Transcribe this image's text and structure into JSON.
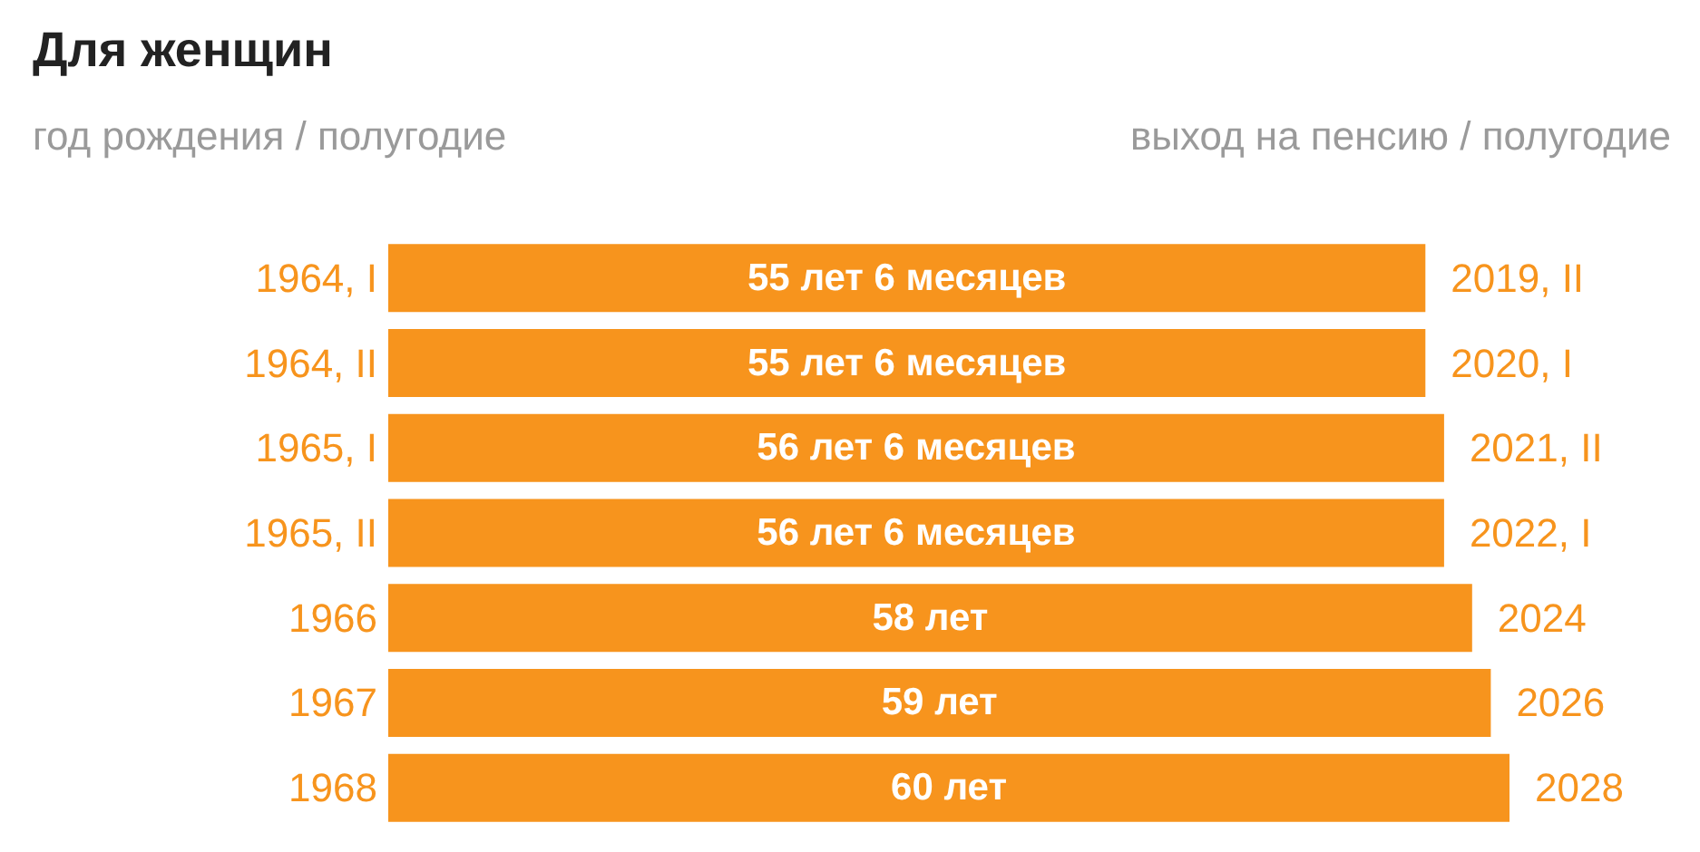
{
  "chart_data": {
    "type": "bar",
    "orientation": "horizontal",
    "title": "Для женщин",
    "ylabel": "год рождения / полугодие",
    "y2label": "выход на пенсию / полугодие",
    "categories": [
      "1964, I",
      "1964, II",
      "1965, I",
      "1965, II",
      "1966",
      "1967",
      "1968"
    ],
    "values": [
      55.5,
      55.5,
      56.5,
      56.5,
      58,
      59,
      60
    ],
    "value_labels": [
      "55 лет 6 месяцев",
      "55 лет 6 месяцев",
      "56 лет 6 месяцев",
      "56 лет 6 месяцев",
      "58 лет",
      "59 лет",
      "60 лет"
    ],
    "color": "#f7941d",
    "tick_labels": "y",
    "annotations": [
      "2019, II",
      "2020, I",
      "2021, II",
      "2022, I",
      "2024",
      "2026",
      "2028"
    ]
  }
}
